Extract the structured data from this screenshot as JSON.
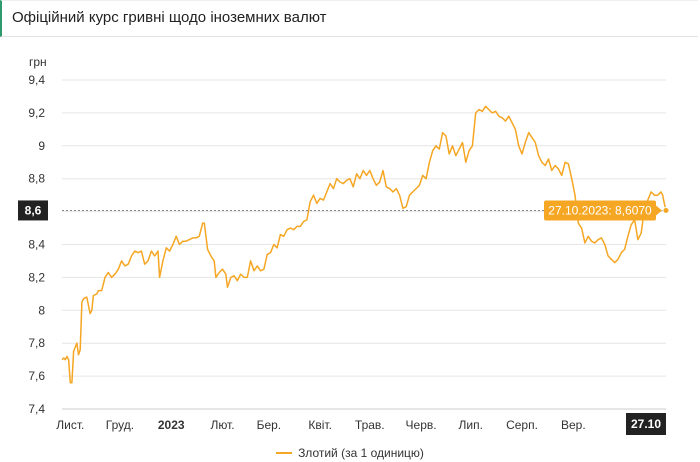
{
  "header": {
    "title": "Офіційний курс гривні щодо іноземних валют"
  },
  "chart_data": {
    "type": "line",
    "ylabel": "грн",
    "ylim": [
      7.4,
      9.4
    ],
    "y_ticks": [
      "9,4",
      "9,2",
      "9",
      "8,8",
      "8,6",
      "8,4",
      "8,2",
      "8",
      "7,8",
      "7,6",
      "7,4"
    ],
    "y_tick_values": [
      9.4,
      9.2,
      9.0,
      8.8,
      8.6,
      8.4,
      8.2,
      8.0,
      7.8,
      7.6,
      7.4
    ],
    "x_ticks": [
      "Лист.",
      "Груд.",
      "2023",
      "Лют.",
      "Бер.",
      "Квіт.",
      "Трав.",
      "Черв.",
      "Лип.",
      "Серп.",
      "Вер."
    ],
    "x_tick_bold": [
      false,
      false,
      true,
      false,
      false,
      false,
      false,
      false,
      false,
      false,
      false
    ],
    "x_range": [
      "2022-10-27",
      "2023-10-27"
    ],
    "x_tick_dates": [
      "2022-11-01",
      "2022-12-01",
      "2023-01-01",
      "2023-02-01",
      "2023-03-01",
      "2023-04-01",
      "2023-05-01",
      "2023-06-01",
      "2023-07-01",
      "2023-08-01",
      "2023-09-01"
    ],
    "crosshair": {
      "x_label": "27.10",
      "y_label": "8,6",
      "tooltip": "27.10.2023: 8,6070",
      "date": "2023-10-27",
      "value": 8.607
    },
    "series": [
      {
        "name": "Злотий (за 1 одиницю)",
        "color": "#f5a623",
        "points": [
          [
            "2022-10-27",
            7.7
          ],
          [
            "2022-10-28",
            7.71
          ],
          [
            "2022-10-29",
            7.7
          ],
          [
            "2022-10-30",
            7.72
          ],
          [
            "2022-10-31",
            7.7
          ],
          [
            "2022-11-01",
            7.56
          ],
          [
            "2022-11-02",
            7.56
          ],
          [
            "2022-11-03",
            7.75
          ],
          [
            "2022-11-05",
            7.8
          ],
          [
            "2022-11-06",
            7.73
          ],
          [
            "2022-11-07",
            7.76
          ],
          [
            "2022-11-08",
            8.05
          ],
          [
            "2022-11-09",
            8.07
          ],
          [
            "2022-11-11",
            8.08
          ],
          [
            "2022-11-13",
            7.98
          ],
          [
            "2022-11-14",
            8.0
          ],
          [
            "2022-11-15",
            8.09
          ],
          [
            "2022-11-17",
            8.1
          ],
          [
            "2022-11-18",
            8.12
          ],
          [
            "2022-11-20",
            8.12
          ],
          [
            "2022-11-22",
            8.2
          ],
          [
            "2022-11-24",
            8.23
          ],
          [
            "2022-11-26",
            8.2
          ],
          [
            "2022-11-28",
            8.22
          ],
          [
            "2022-11-30",
            8.25
          ],
          [
            "2022-12-02",
            8.3
          ],
          [
            "2022-12-04",
            8.27
          ],
          [
            "2022-12-06",
            8.28
          ],
          [
            "2022-12-08",
            8.33
          ],
          [
            "2022-12-10",
            8.36
          ],
          [
            "2022-12-12",
            8.35
          ],
          [
            "2022-12-14",
            8.36
          ],
          [
            "2022-12-16",
            8.28
          ],
          [
            "2022-12-18",
            8.3
          ],
          [
            "2022-12-20",
            8.36
          ],
          [
            "2022-12-22",
            8.33
          ],
          [
            "2022-12-24",
            8.36
          ],
          [
            "2022-12-25",
            8.2
          ],
          [
            "2022-12-27",
            8.3
          ],
          [
            "2022-12-29",
            8.38
          ],
          [
            "2022-12-31",
            8.36
          ],
          [
            "2023-01-02",
            8.4
          ],
          [
            "2023-01-04",
            8.45
          ],
          [
            "2023-01-06",
            8.4
          ],
          [
            "2023-01-08",
            8.42
          ],
          [
            "2023-01-10",
            8.42
          ],
          [
            "2023-01-12",
            8.43
          ],
          [
            "2023-01-14",
            8.44
          ],
          [
            "2023-01-16",
            8.44
          ],
          [
            "2023-01-18",
            8.45
          ],
          [
            "2023-01-20",
            8.53
          ],
          [
            "2023-01-21",
            8.53
          ],
          [
            "2023-01-23",
            8.37
          ],
          [
            "2023-01-25",
            8.33
          ],
          [
            "2023-01-27",
            8.3
          ],
          [
            "2023-01-28",
            8.2
          ],
          [
            "2023-01-30",
            8.23
          ],
          [
            "2023-02-01",
            8.25
          ],
          [
            "2023-02-03",
            8.22
          ],
          [
            "2023-02-04",
            8.14
          ],
          [
            "2023-02-06",
            8.2
          ],
          [
            "2023-02-08",
            8.21
          ],
          [
            "2023-02-10",
            8.18
          ],
          [
            "2023-02-12",
            8.22
          ],
          [
            "2023-02-14",
            8.2
          ],
          [
            "2023-02-16",
            8.2
          ],
          [
            "2023-02-18",
            8.3
          ],
          [
            "2023-02-20",
            8.24
          ],
          [
            "2023-02-22",
            8.27
          ],
          [
            "2023-02-24",
            8.24
          ],
          [
            "2023-02-26",
            8.25
          ],
          [
            "2023-02-28",
            8.34
          ],
          [
            "2023-03-02",
            8.35
          ],
          [
            "2023-03-04",
            8.4
          ],
          [
            "2023-03-06",
            8.38
          ],
          [
            "2023-03-08",
            8.46
          ],
          [
            "2023-03-10",
            8.45
          ],
          [
            "2023-03-12",
            8.49
          ],
          [
            "2023-03-14",
            8.5
          ],
          [
            "2023-03-16",
            8.49
          ],
          [
            "2023-03-18",
            8.51
          ],
          [
            "2023-03-20",
            8.51
          ],
          [
            "2023-03-22",
            8.54
          ],
          [
            "2023-03-24",
            8.55
          ],
          [
            "2023-03-26",
            8.66
          ],
          [
            "2023-03-28",
            8.7
          ],
          [
            "2023-03-30",
            8.65
          ],
          [
            "2023-04-01",
            8.68
          ],
          [
            "2023-04-03",
            8.67
          ],
          [
            "2023-04-05",
            8.72
          ],
          [
            "2023-04-07",
            8.77
          ],
          [
            "2023-04-09",
            8.74
          ],
          [
            "2023-04-11",
            8.8
          ],
          [
            "2023-04-13",
            8.78
          ],
          [
            "2023-04-15",
            8.77
          ],
          [
            "2023-04-17",
            8.79
          ],
          [
            "2023-04-19",
            8.8
          ],
          [
            "2023-04-21",
            8.75
          ],
          [
            "2023-04-23",
            8.83
          ],
          [
            "2023-04-25",
            8.8
          ],
          [
            "2023-04-27",
            8.85
          ],
          [
            "2023-04-29",
            8.82
          ],
          [
            "2023-05-01",
            8.85
          ],
          [
            "2023-05-03",
            8.8
          ],
          [
            "2023-05-05",
            8.76
          ],
          [
            "2023-05-07",
            8.78
          ],
          [
            "2023-05-09",
            8.85
          ],
          [
            "2023-05-11",
            8.75
          ],
          [
            "2023-05-13",
            8.74
          ],
          [
            "2023-05-15",
            8.72
          ],
          [
            "2023-05-17",
            8.74
          ],
          [
            "2023-05-19",
            8.7
          ],
          [
            "2023-05-21",
            8.62
          ],
          [
            "2023-05-23",
            8.63
          ],
          [
            "2023-05-25",
            8.7
          ],
          [
            "2023-05-27",
            8.72
          ],
          [
            "2023-05-29",
            8.74
          ],
          [
            "2023-05-31",
            8.76
          ],
          [
            "2023-06-02",
            8.82
          ],
          [
            "2023-06-04",
            8.8
          ],
          [
            "2023-06-06",
            8.9
          ],
          [
            "2023-06-08",
            8.97
          ],
          [
            "2023-06-10",
            9.0
          ],
          [
            "2023-06-12",
            8.98
          ],
          [
            "2023-06-14",
            9.08
          ],
          [
            "2023-06-16",
            9.06
          ],
          [
            "2023-06-18",
            8.95
          ],
          [
            "2023-06-20",
            9.0
          ],
          [
            "2023-06-22",
            8.94
          ],
          [
            "2023-06-24",
            8.98
          ],
          [
            "2023-06-26",
            9.02
          ],
          [
            "2023-06-28",
            8.9
          ],
          [
            "2023-06-30",
            8.97
          ],
          [
            "2023-07-02",
            9.0
          ],
          [
            "2023-07-04",
            9.2
          ],
          [
            "2023-07-06",
            9.22
          ],
          [
            "2023-07-08",
            9.21
          ],
          [
            "2023-07-10",
            9.24
          ],
          [
            "2023-07-12",
            9.22
          ],
          [
            "2023-07-14",
            9.2
          ],
          [
            "2023-07-16",
            9.21
          ],
          [
            "2023-07-18",
            9.18
          ],
          [
            "2023-07-20",
            9.17
          ],
          [
            "2023-07-22",
            9.15
          ],
          [
            "2023-07-24",
            9.18
          ],
          [
            "2023-07-26",
            9.14
          ],
          [
            "2023-07-28",
            9.1
          ],
          [
            "2023-07-30",
            9.0
          ],
          [
            "2023-08-01",
            8.95
          ],
          [
            "2023-08-03",
            9.02
          ],
          [
            "2023-08-05",
            9.08
          ],
          [
            "2023-08-07",
            9.05
          ],
          [
            "2023-08-09",
            9.02
          ],
          [
            "2023-08-11",
            8.94
          ],
          [
            "2023-08-13",
            8.9
          ],
          [
            "2023-08-15",
            8.88
          ],
          [
            "2023-08-17",
            8.92
          ],
          [
            "2023-08-19",
            8.85
          ],
          [
            "2023-08-21",
            8.88
          ],
          [
            "2023-08-23",
            8.86
          ],
          [
            "2023-08-25",
            8.82
          ],
          [
            "2023-08-27",
            8.9
          ],
          [
            "2023-08-29",
            8.89
          ],
          [
            "2023-08-31",
            8.8
          ],
          [
            "2023-09-02",
            8.7
          ],
          [
            "2023-09-04",
            8.53
          ],
          [
            "2023-09-06",
            8.5
          ],
          [
            "2023-09-08",
            8.41
          ],
          [
            "2023-09-10",
            8.45
          ],
          [
            "2023-09-12",
            8.42
          ],
          [
            "2023-09-14",
            8.41
          ],
          [
            "2023-09-16",
            8.43
          ],
          [
            "2023-09-18",
            8.44
          ],
          [
            "2023-09-20",
            8.4
          ],
          [
            "2023-09-22",
            8.33
          ],
          [
            "2023-09-24",
            8.31
          ],
          [
            "2023-09-26",
            8.29
          ],
          [
            "2023-09-28",
            8.31
          ],
          [
            "2023-09-30",
            8.35
          ],
          [
            "2023-10-02",
            8.37
          ],
          [
            "2023-10-04",
            8.45
          ],
          [
            "2023-10-06",
            8.52
          ],
          [
            "2023-10-08",
            8.55
          ],
          [
            "2023-10-10",
            8.43
          ],
          [
            "2023-10-12",
            8.47
          ],
          [
            "2023-10-14",
            8.62
          ],
          [
            "2023-10-16",
            8.67
          ],
          [
            "2023-10-18",
            8.72
          ],
          [
            "2023-10-20",
            8.7
          ],
          [
            "2023-10-22",
            8.7
          ],
          [
            "2023-10-24",
            8.72
          ],
          [
            "2023-10-25",
            8.7
          ],
          [
            "2023-10-26",
            8.65
          ],
          [
            "2023-10-27",
            8.607
          ]
        ]
      }
    ]
  }
}
